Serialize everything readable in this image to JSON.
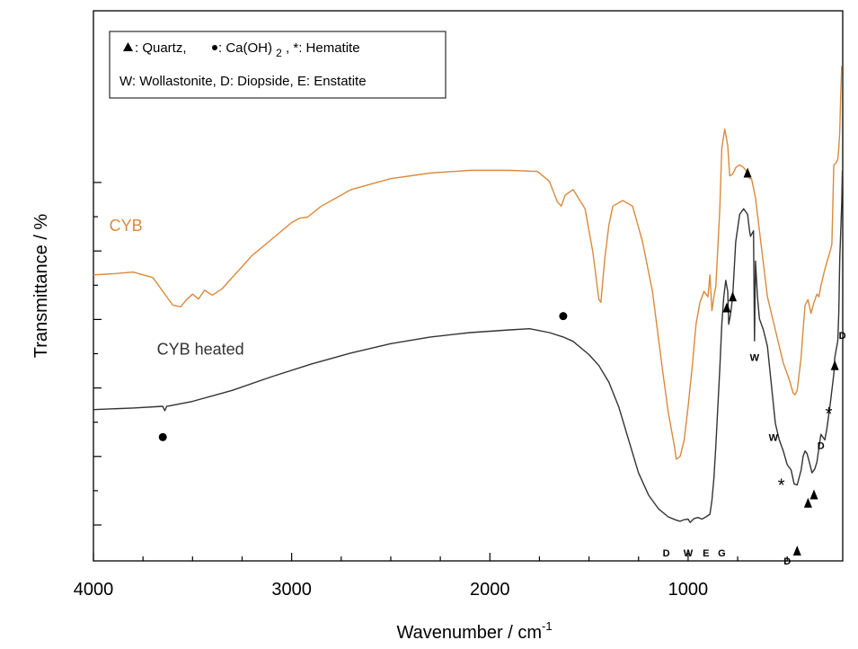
{
  "chart_data": {
    "type": "line",
    "title": "",
    "xlabel": "Wavenumber / cm",
    "xlabel_superscript": "-1",
    "ylabel": "Transmittance / %",
    "xlim": [
      4000,
      220
    ],
    "x_reversed": true,
    "xticks": [
      4000,
      3000,
      2000,
      1000
    ],
    "xtick_labels": [
      "4000",
      "3000",
      "2000",
      "1000"
    ],
    "y_tick_labels_shown": false,
    "legend": {
      "placement": "top-left",
      "line1": {
        "triangle_label": ": Quartz, ",
        "dot_label": ": Ca(OH)",
        "subscript": "2",
        "tail": ", *: Hematite"
      },
      "line2": "W: Wollastonite, D: Diopside, E: Enstatite"
    },
    "series": [
      {
        "name": "CYB",
        "color": "#D98A3D",
        "points": [
          [
            4000,
            52
          ],
          [
            3900,
            52.2
          ],
          [
            3800,
            52.5
          ],
          [
            3700,
            51.5
          ],
          [
            3650,
            49
          ],
          [
            3600,
            46.5
          ],
          [
            3560,
            46.2
          ],
          [
            3530,
            47.5
          ],
          [
            3500,
            48.5
          ],
          [
            3470,
            47.6
          ],
          [
            3440,
            49.2
          ],
          [
            3400,
            48.3
          ],
          [
            3350,
            49.5
          ],
          [
            3300,
            51.5
          ],
          [
            3250,
            53.5
          ],
          [
            3200,
            55.5
          ],
          [
            3100,
            58.5
          ],
          [
            3000,
            61.5
          ],
          [
            2960,
            62.3
          ],
          [
            2920,
            62.5
          ],
          [
            2850,
            64.5
          ],
          [
            2700,
            67.5
          ],
          [
            2500,
            69.5
          ],
          [
            2300,
            70.5
          ],
          [
            2100,
            71
          ],
          [
            1900,
            71
          ],
          [
            1760,
            70.8
          ],
          [
            1700,
            69
          ],
          [
            1660,
            65.3
          ],
          [
            1640,
            64.5
          ],
          [
            1620,
            66.5
          ],
          [
            1580,
            67.5
          ],
          [
            1520,
            64
          ],
          [
            1480,
            56
          ],
          [
            1450,
            47.5
          ],
          [
            1440,
            47
          ],
          [
            1420,
            55
          ],
          [
            1400,
            61
          ],
          [
            1380,
            64.5
          ],
          [
            1330,
            65.5
          ],
          [
            1280,
            64.5
          ],
          [
            1230,
            58
          ],
          [
            1180,
            49
          ],
          [
            1130,
            35
          ],
          [
            1100,
            27
          ],
          [
            1070,
            21
          ],
          [
            1060,
            18.5
          ],
          [
            1040,
            19
          ],
          [
            1020,
            22
          ],
          [
            1000,
            28
          ],
          [
            980,
            35
          ],
          [
            960,
            43
          ],
          [
            940,
            47
          ],
          [
            920,
            49
          ],
          [
            900,
            48
          ],
          [
            890,
            52
          ],
          [
            880,
            45.5
          ],
          [
            870,
            48
          ],
          [
            860,
            50
          ],
          [
            840,
            64
          ],
          [
            830,
            75
          ],
          [
            815,
            78.5
          ],
          [
            800,
            75.5
          ],
          [
            790,
            70
          ],
          [
            775,
            70.3
          ],
          [
            760,
            71.5
          ],
          [
            740,
            72
          ],
          [
            720,
            71.5
          ],
          [
            700,
            70.5
          ],
          [
            690,
            69.5
          ],
          [
            680,
            69.5
          ],
          [
            660,
            66
          ],
          [
            640,
            60
          ],
          [
            600,
            48
          ],
          [
            560,
            42
          ],
          [
            520,
            36
          ],
          [
            490,
            33
          ],
          [
            470,
            30.5
          ],
          [
            460,
            30.2
          ],
          [
            450,
            31
          ],
          [
            430,
            37
          ],
          [
            420,
            42
          ],
          [
            410,
            46.5
          ],
          [
            395,
            47.5
          ],
          [
            380,
            45
          ],
          [
            365,
            47
          ],
          [
            350,
            48.5
          ],
          [
            340,
            48
          ],
          [
            330,
            50
          ],
          [
            310,
            53
          ],
          [
            290,
            55.5
          ],
          [
            275,
            57.5
          ],
          [
            265,
            72
          ],
          [
            255,
            72.3
          ],
          [
            245,
            73
          ],
          [
            240,
            75
          ],
          [
            235,
            78
          ],
          [
            230,
            85
          ],
          [
            225,
            90
          ]
        ]
      },
      {
        "name": "CYB heated",
        "color": "#333333",
        "points": [
          [
            4000,
            27.5
          ],
          [
            3800,
            27.8
          ],
          [
            3650,
            28.1
          ],
          [
            3640,
            27.3
          ],
          [
            3630,
            28.1
          ],
          [
            3500,
            29
          ],
          [
            3300,
            31
          ],
          [
            3100,
            33.5
          ],
          [
            2900,
            35.8
          ],
          [
            2700,
            37.8
          ],
          [
            2500,
            39.5
          ],
          [
            2300,
            40.7
          ],
          [
            2100,
            41.5
          ],
          [
            1900,
            42
          ],
          [
            1800,
            42.2
          ],
          [
            1700,
            41.5
          ],
          [
            1630,
            40.7
          ],
          [
            1580,
            39.9
          ],
          [
            1500,
            37.5
          ],
          [
            1450,
            35.5
          ],
          [
            1400,
            32.5
          ],
          [
            1350,
            28
          ],
          [
            1300,
            22
          ],
          [
            1250,
            16
          ],
          [
            1200,
            12
          ],
          [
            1150,
            9.5
          ],
          [
            1100,
            8
          ],
          [
            1060,
            7.4
          ],
          [
            1040,
            7.2
          ],
          [
            1020,
            7.5
          ],
          [
            1000,
            7.6
          ],
          [
            990,
            7
          ],
          [
            970,
            7.7
          ],
          [
            950,
            7.9
          ],
          [
            930,
            7.6
          ],
          [
            910,
            8
          ],
          [
            890,
            8.5
          ],
          [
            880,
            11
          ],
          [
            870,
            15
          ],
          [
            860,
            21
          ],
          [
            850,
            28
          ],
          [
            840,
            35
          ],
          [
            830,
            43
          ],
          [
            820,
            48
          ],
          [
            810,
            51
          ],
          [
            800,
            49
          ],
          [
            795,
            43
          ],
          [
            785,
            45
          ],
          [
            775,
            48
          ],
          [
            760,
            58
          ],
          [
            740,
            63
          ],
          [
            720,
            64
          ],
          [
            700,
            63
          ],
          [
            690,
            60
          ],
          [
            685,
            59
          ],
          [
            670,
            60
          ],
          [
            665,
            40
          ],
          [
            660,
            54.5
          ],
          [
            650,
            48
          ],
          [
            640,
            44
          ],
          [
            620,
            42
          ],
          [
            600,
            39
          ],
          [
            580,
            32
          ],
          [
            560,
            25
          ],
          [
            540,
            22
          ],
          [
            520,
            20
          ],
          [
            500,
            17.5
          ],
          [
            480,
            16.5
          ],
          [
            465,
            14
          ],
          [
            450,
            13.8
          ],
          [
            430,
            16.5
          ],
          [
            420,
            19
          ],
          [
            410,
            20
          ],
          [
            400,
            19.5
          ],
          [
            385,
            17.5
          ],
          [
            375,
            16
          ],
          [
            360,
            16.8
          ],
          [
            350,
            18
          ],
          [
            340,
            20.5
          ],
          [
            330,
            23
          ],
          [
            320,
            22.5
          ],
          [
            310,
            22
          ],
          [
            300,
            24
          ],
          [
            285,
            28
          ],
          [
            275,
            31
          ],
          [
            265,
            34
          ],
          [
            260,
            37
          ],
          [
            255,
            38
          ],
          [
            245,
            40
          ],
          [
            240,
            45
          ],
          [
            235,
            55
          ],
          [
            230,
            60
          ],
          [
            225,
            65
          ],
          [
            222,
            71
          ]
        ]
      }
    ],
    "series_labels": [
      {
        "text": "CYB",
        "x": 3920,
        "y": 60
      },
      {
        "text": "CYB heated",
        "x": 3680,
        "y": 37.5
      }
    ],
    "annotations": [
      {
        "marker": "dot",
        "x": 3650,
        "y": 22.5
      },
      {
        "marker": "dot",
        "x": 1630,
        "y": 44.5
      },
      {
        "text": "D",
        "x": 1110,
        "y": 1.5
      },
      {
        "text": "W",
        "x": 1000,
        "y": 1.5
      },
      {
        "text": "E",
        "x": 910,
        "y": 1.5
      },
      {
        "text": "G",
        "x": 830,
        "y": 1.5
      },
      {
        "marker": "triangle",
        "x": 805,
        "y": 46
      },
      {
        "marker": "triangle",
        "x": 775,
        "y": 48
      },
      {
        "marker": "triangle",
        "x": 700,
        "y": 70.5
      },
      {
        "text": "W",
        "x": 665,
        "y": 37
      },
      {
        "text": "W",
        "x": 570,
        "y": 22.5
      },
      {
        "text": "*",
        "x": 530,
        "y": 14
      },
      {
        "text": "D",
        "x": 500,
        "y": 0
      },
      {
        "marker": "triangle",
        "x": 450,
        "y": 1.8
      },
      {
        "marker": "triangle",
        "x": 395,
        "y": 10.5
      },
      {
        "marker": "triangle",
        "x": 365,
        "y": 12
      },
      {
        "text": "D",
        "x": 330,
        "y": 21
      },
      {
        "text": "*",
        "x": 290,
        "y": 27
      },
      {
        "marker": "triangle",
        "x": 260,
        "y": 35.5
      },
      {
        "text": "D",
        "x": 222,
        "y": 41
      }
    ]
  }
}
